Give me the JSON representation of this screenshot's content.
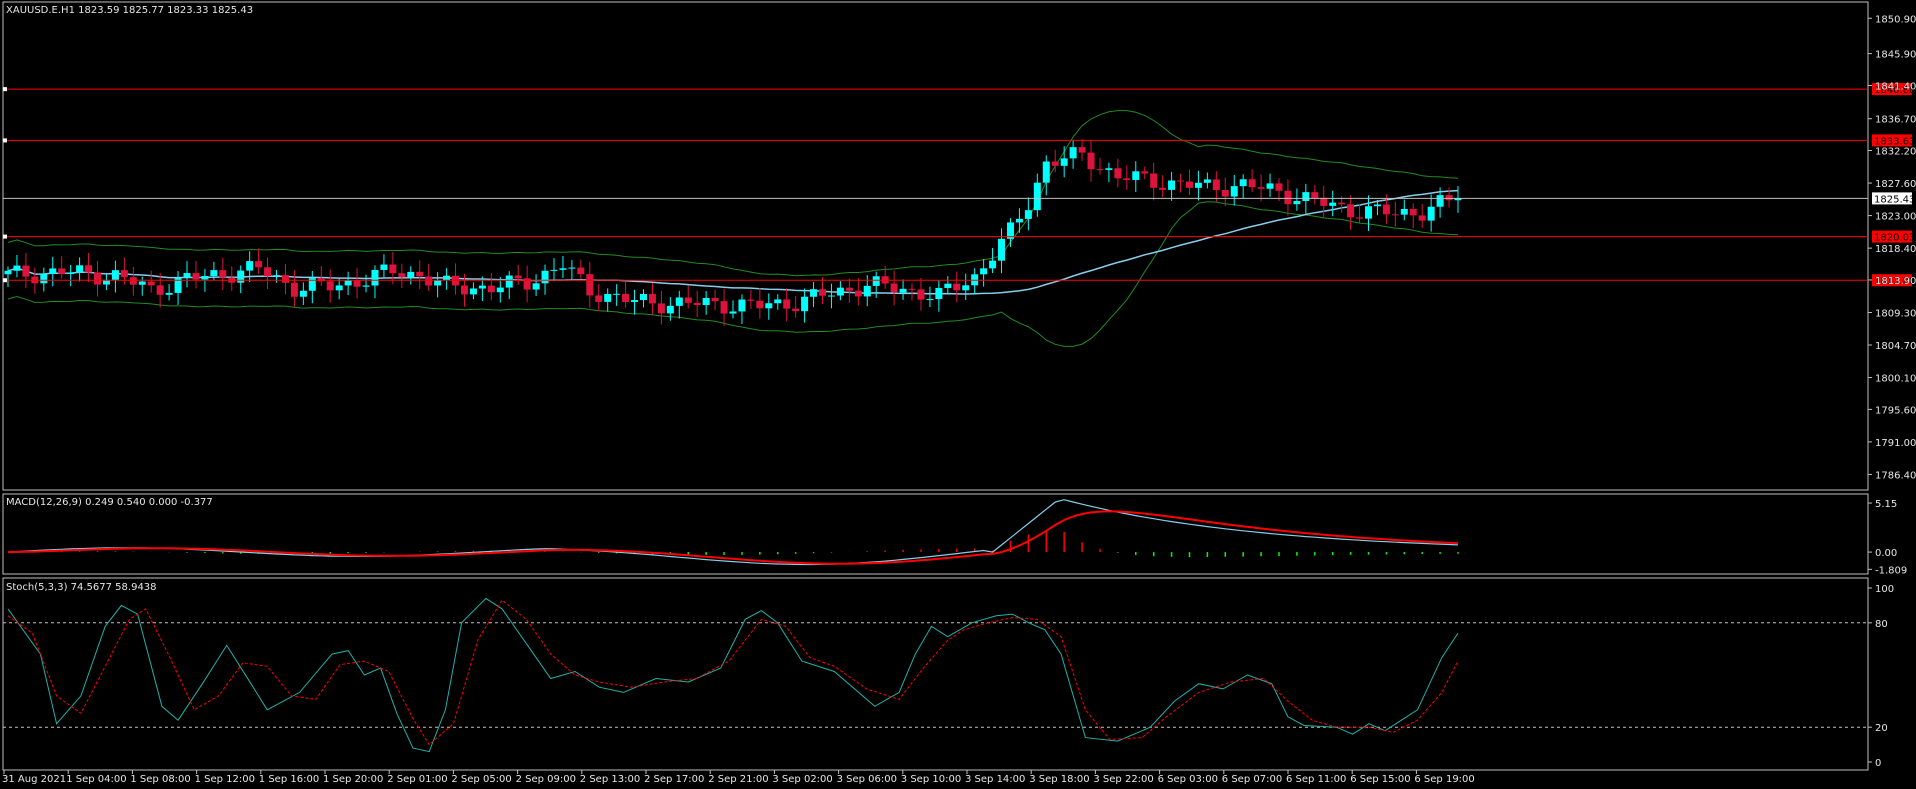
{
  "window": {
    "symbol_header": "XAUUSD.E.H1  1823.59 1825.77 1823.33 1825.43",
    "macd_header": "MACD(12,26,9) 0.249 0.540 0.000 -0.377",
    "stoch_header": "Stoch(5,3,3) 74.5677 58.9438"
  },
  "colors": {
    "background": "#000000",
    "bull": "#00ffff",
    "bear": "#dc143c",
    "bands": "#228b22",
    "ma": "#87ceeb",
    "hline": "#ff0000",
    "current_price": "#c0c0c0",
    "macd_signal": "#ff0000",
    "macd_main": "#87ceeb",
    "hist_pos": "#ff0000",
    "hist_neg": "#00ff00",
    "stoch_main": "#20b2aa",
    "stoch_signal": "#ff0000",
    "axis": "#c0c0c0"
  },
  "chart_data": [
    {
      "type": "candlestick",
      "title": "XAUUSD.E.H1",
      "ylim": [
        1784.2,
        1853.2
      ],
      "y_ticks": [
        "1850.90",
        "1845.90",
        "1841.40",
        "1836.70",
        "1832.20",
        "1827.60",
        "1823.00",
        "1818.40",
        "1813.90",
        "1809.30",
        "1804.70",
        "1800.10",
        "1795.60",
        "1791.00",
        "1786.40"
      ],
      "horizontal_lines": [
        {
          "value": 1840.88,
          "label": "1840.88"
        },
        {
          "value": 1833.63,
          "label": "1833.63"
        },
        {
          "value": 1820.03,
          "label": "1820.03"
        },
        {
          "value": 1813.86,
          "label": "1813.86"
        }
      ],
      "current_price": {
        "value": 1825.43,
        "label": "1825.43"
      },
      "close_path": [
        [
          0,
          1814.6
        ],
        [
          6,
          1815.0
        ],
        [
          12,
          1814.5
        ],
        [
          16,
          1812.5
        ],
        [
          20,
          1814.0
        ],
        [
          28,
          1815.5
        ],
        [
          32,
          1812.8
        ],
        [
          36,
          1813.0
        ],
        [
          40,
          1814.0
        ],
        [
          43,
          1815.2
        ],
        [
          46,
          1814.6
        ],
        [
          49,
          1813.0
        ],
        [
          54,
          1812.8
        ],
        [
          58,
          1813.6
        ],
        [
          62,
          1816.0
        ],
        [
          65,
          1812.4
        ],
        [
          70,
          1810.8
        ],
        [
          74,
          1810.6
        ],
        [
          79,
          1810.5
        ],
        [
          84,
          1810.2
        ],
        [
          88,
          1810.8
        ],
        [
          96,
          1813.2
        ],
        [
          100,
          1812.6
        ],
        [
          104,
          1811.6
        ],
        [
          108,
          1814.4
        ],
        [
          112,
          1820.6
        ],
        [
          114,
          1824.8
        ],
        [
          116,
          1830.5
        ],
        [
          120,
          1831.5
        ],
        [
          124,
          1828.5
        ],
        [
          128,
          1827.9
        ],
        [
          134,
          1827.0
        ],
        [
          138,
          1827.3
        ],
        [
          142,
          1826.4
        ],
        [
          146,
          1825.0
        ],
        [
          150,
          1823.8
        ],
        [
          155,
          1823.3
        ],
        [
          158,
          1823.6
        ],
        [
          162,
          1825.4
        ]
      ],
      "x_ticks": [
        "31 Aug 2021",
        "1 Sep 04:00",
        "1 Sep 08:00",
        "1 Sep 12:00",
        "1 Sep 16:00",
        "1 Sep 20:00",
        "2 Sep 01:00",
        "2 Sep 05:00",
        "2 Sep 09:00",
        "2 Sep 13:00",
        "2 Sep 17:00",
        "2 Sep 21:00",
        "3 Sep 02:00",
        "3 Sep 06:00",
        "3 Sep 10:00",
        "3 Sep 14:00",
        "3 Sep 18:00",
        "3 Sep 22:00",
        "6 Sep 03:00",
        "6 Sep 07:00",
        "6 Sep 11:00",
        "6 Sep 15:00",
        "6 Sep 19:00"
      ]
    },
    {
      "type": "macd",
      "title": "MACD(12,26,9)",
      "ylim": [
        -2.3,
        6.1
      ],
      "y_ticks": [
        "5.15",
        "0.00",
        "-1.809"
      ]
    },
    {
      "type": "stochastic",
      "title": "Stoch(5,3,3)",
      "ylim": [
        0,
        100
      ],
      "y_ticks": [
        "100",
        "80",
        "20",
        "0"
      ],
      "levels": [
        80,
        20
      ],
      "main_path": [
        [
          0,
          88
        ],
        [
          4,
          62
        ],
        [
          6,
          22
        ],
        [
          9,
          38
        ],
        [
          12,
          78
        ],
        [
          14,
          90
        ],
        [
          16,
          85
        ],
        [
          19,
          32
        ],
        [
          21,
          24
        ],
        [
          24,
          45
        ],
        [
          27,
          67
        ],
        [
          30,
          45
        ],
        [
          32,
          30
        ],
        [
          36,
          40
        ],
        [
          40,
          62
        ],
        [
          42,
          64
        ],
        [
          44,
          50
        ],
        [
          46,
          54
        ],
        [
          48,
          28
        ],
        [
          50,
          8
        ],
        [
          52,
          6
        ],
        [
          54,
          30
        ],
        [
          56,
          80
        ],
        [
          59,
          94
        ],
        [
          61,
          88
        ],
        [
          64,
          68
        ],
        [
          67,
          48
        ],
        [
          70,
          52
        ],
        [
          73,
          43
        ],
        [
          76,
          40
        ],
        [
          80,
          48
        ],
        [
          84,
          46
        ],
        [
          88,
          54
        ],
        [
          91,
          82
        ],
        [
          93,
          87
        ],
        [
          95,
          80
        ],
        [
          98,
          58
        ],
        [
          102,
          52
        ],
        [
          107,
          32
        ],
        [
          110,
          40
        ],
        [
          112,
          62
        ],
        [
          114,
          78
        ],
        [
          116,
          72
        ],
        [
          119,
          80
        ],
        [
          122,
          84
        ],
        [
          124,
          85
        ],
        [
          126,
          80
        ],
        [
          128,
          76
        ],
        [
          130,
          62
        ],
        [
          133,
          14
        ],
        [
          137,
          12
        ],
        [
          141,
          20
        ],
        [
          144,
          35
        ],
        [
          147,
          45
        ],
        [
          150,
          42
        ],
        [
          153,
          50
        ],
        [
          156,
          45
        ],
        [
          158,
          26
        ],
        [
          160,
          21
        ],
        [
          164,
          20
        ],
        [
          166,
          16
        ],
        [
          168,
          22
        ],
        [
          170,
          18
        ],
        [
          174,
          30
        ],
        [
          177,
          60
        ],
        [
          179,
          74
        ]
      ],
      "signal_path": [
        [
          0,
          84
        ],
        [
          3,
          74
        ],
        [
          6,
          38
        ],
        [
          9,
          28
        ],
        [
          12,
          55
        ],
        [
          15,
          82
        ],
        [
          17,
          88
        ],
        [
          20,
          60
        ],
        [
          23,
          30
        ],
        [
          26,
          38
        ],
        [
          29,
          57
        ],
        [
          32,
          55
        ],
        [
          35,
          38
        ],
        [
          38,
          36
        ],
        [
          41,
          56
        ],
        [
          44,
          58
        ],
        [
          47,
          52
        ],
        [
          50,
          25
        ],
        [
          52,
          10
        ],
        [
          55,
          22
        ],
        [
          58,
          70
        ],
        [
          61,
          93
        ],
        [
          64,
          82
        ],
        [
          67,
          62
        ],
        [
          70,
          50
        ],
        [
          73,
          46
        ],
        [
          77,
          43
        ],
        [
          81,
          46
        ],
        [
          85,
          48
        ],
        [
          89,
          58
        ],
        [
          93,
          82
        ],
        [
          96,
          78
        ],
        [
          99,
          60
        ],
        [
          102,
          55
        ],
        [
          106,
          42
        ],
        [
          110,
          36
        ],
        [
          113,
          54
        ],
        [
          116,
          70
        ],
        [
          118,
          76
        ],
        [
          121,
          80
        ],
        [
          124,
          83
        ],
        [
          127,
          82
        ],
        [
          130,
          72
        ],
        [
          133,
          30
        ],
        [
          136,
          13
        ],
        [
          140,
          14
        ],
        [
          143,
          26
        ],
        [
          147,
          40
        ],
        [
          151,
          46
        ],
        [
          155,
          48
        ],
        [
          158,
          35
        ],
        [
          161,
          24
        ],
        [
          164,
          20
        ],
        [
          168,
          20
        ],
        [
          171,
          17
        ],
        [
          174,
          24
        ],
        [
          177,
          40
        ],
        [
          179,
          58
        ]
      ]
    }
  ]
}
